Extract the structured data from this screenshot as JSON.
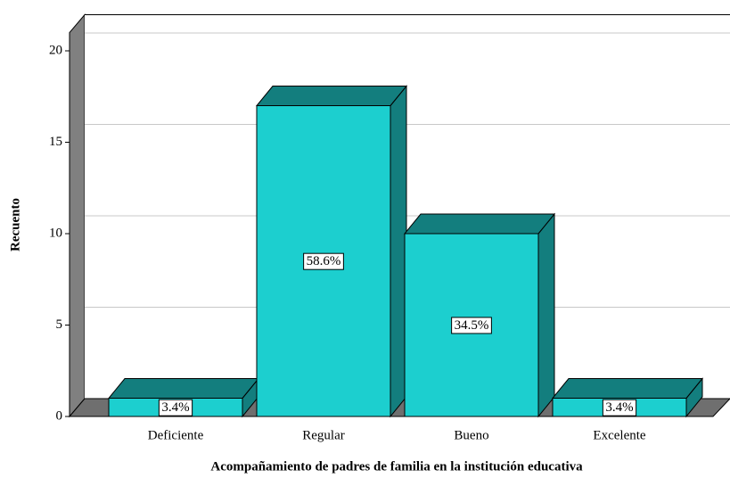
{
  "chart_data": {
    "type": "bar",
    "x_label": "Acompañamiento de padres de familia en la institución educativa",
    "y_label": "Recuento",
    "categories": [
      "Deficiente",
      "Regular",
      "Bueno",
      "Excelente"
    ],
    "values": [
      1,
      17,
      10,
      1
    ],
    "percent_labels": [
      "3.4%",
      "58.6%",
      "34.5%",
      "3.4%"
    ],
    "color": "#1ccfcf",
    "ylim": [
      0,
      21
    ],
    "yticks": [
      0,
      5,
      10,
      15,
      20
    ],
    "grid": true
  }
}
